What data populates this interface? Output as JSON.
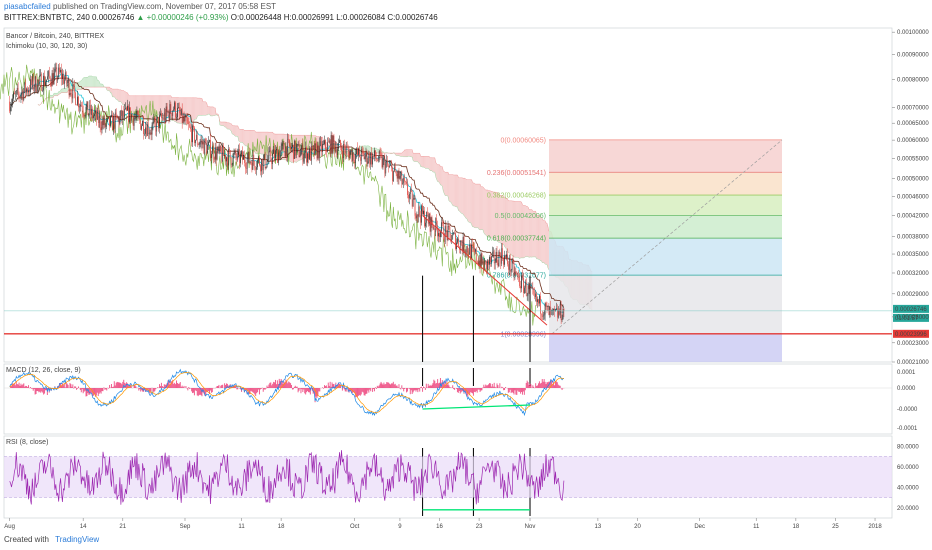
{
  "header": {
    "author": "piasabcfailed",
    "published_text": "published on TradingView.com, November 07, 2017 05:58 EST",
    "symbol_line": "BITTREX:BNTBTC, 240",
    "last": "0.00026746",
    "change": "▲ +0.00000246 (+0.93%)",
    "open": "O:0.00026448",
    "high": "H:0.00026991",
    "low": "L:0.00026084",
    "close": "C:0.00026746"
  },
  "footer": {
    "created_with": "Created with",
    "brand": "TradingView"
  },
  "colors": {
    "candle_up": "#2b2b2b",
    "candle_down": "#e0403a",
    "tenkan": "#26c6da",
    "kijun": "#6d2f1c",
    "lagging": "#7cb342",
    "kumo_bear": "#f4c7c7",
    "kumo_bull": "#c8e6c9",
    "support": "#e53935",
    "macd_line": "#1e88e5",
    "signal_line": "#ff9800",
    "histogram": "#e91e63",
    "rsi_line": "#9c27b0",
    "rsi_band": "#eadcf8",
    "divergence": "#00e676"
  },
  "chart_data": [
    {
      "type": "line",
      "panel": "price",
      "title": "Bancor / Bitcoin, 240, BITTREX",
      "indicator_label": "Ichimoku (10, 30, 120, 30)",
      "y_scale": "log",
      "ylim": [
        0.00021,
        0.00102
      ],
      "y_ticks": [
        "0.00100000",
        "0.00090000",
        "0.00080000",
        "0.00070000",
        "0.00065000",
        "0.00060000",
        "0.00055000",
        "0.00050000",
        "0.00046000",
        "0.00042000",
        "0.00038000",
        "0.00035000",
        "0.00032000",
        "0.00029000",
        "0.00026000",
        "0.00023000",
        "0.00021000"
      ],
      "x_ticks": [
        "Aug",
        "14",
        "21",
        "Sep",
        "11",
        "18",
        "Oct",
        "9",
        "16",
        "23",
        "Nov",
        "13",
        "20",
        "Dec",
        "11",
        "18",
        "25",
        "2018"
      ],
      "price_path": {
        "dates": [
          "2017-08-01",
          "2017-08-05",
          "2017-08-10",
          "2017-08-14",
          "2017-08-18",
          "2017-08-22",
          "2017-08-26",
          "2017-08-30",
          "2017-09-03",
          "2017-09-07",
          "2017-09-11",
          "2017-09-15",
          "2017-09-19",
          "2017-09-23",
          "2017-09-27",
          "2017-10-01",
          "2017-10-05",
          "2017-10-09",
          "2017-10-12",
          "2017-10-15",
          "2017-10-18",
          "2017-10-21",
          "2017-10-24",
          "2017-10-27",
          "2017-10-30",
          "2017-11-02",
          "2017-11-05",
          "2017-11-07"
        ],
        "values": [
          0.00072,
          0.00078,
          0.00082,
          0.0007,
          0.00064,
          0.00068,
          0.00063,
          0.0007,
          0.0006,
          0.00056,
          0.00055,
          0.00054,
          0.00058,
          0.00056,
          0.00059,
          0.00056,
          0.00055,
          0.0005,
          0.00043,
          0.0004,
          0.00038,
          0.00036,
          0.00033,
          0.00035,
          0.00031,
          0.00028,
          0.00026,
          0.00026746
        ]
      },
      "last_price": "0.00026746",
      "countdown": "01:01:57",
      "support_price": "0.00023996",
      "fibonacci": [
        {
          "level": "0",
          "price": "0.00060065",
          "label": "0(0.00060065)",
          "color": "#f28b82"
        },
        {
          "level": "0.236",
          "price": "0.00051541",
          "label": "0.236(0.00051541)",
          "color": "#e57373"
        },
        {
          "level": "0.382",
          "price": "0.00046268",
          "label": "0.382(0.00046268)",
          "color": "#9ccc65"
        },
        {
          "level": "0.5",
          "price": "0.00042006",
          "label": "0.5(0.00042006)",
          "color": "#66bb6a"
        },
        {
          "level": "0.618",
          "price": "0.00037744",
          "label": "0.618(0.00037744)",
          "color": "#4caf50"
        },
        {
          "level": "0.786",
          "price": "0.00031677",
          "label": "0.786(0.00031677)",
          "color": "#26a69a"
        },
        {
          "level": "1",
          "price": "0.00023996",
          "label": "1(0.00023996)",
          "color": "#7986cb"
        }
      ]
    },
    {
      "type": "line",
      "panel": "macd",
      "title": "MACD (12, 26, close, 9)",
      "y_ticks": [
        "0.0001",
        "0.0000",
        "-0.0000",
        "-0.0001"
      ]
    },
    {
      "type": "line",
      "panel": "rsi",
      "title": "RSI (8, close)",
      "ylim": [
        10,
        90
      ],
      "y_ticks": [
        "80.0000",
        "60.0000",
        "40.0000",
        "20.0000"
      ],
      "band": [
        30,
        70
      ]
    }
  ]
}
